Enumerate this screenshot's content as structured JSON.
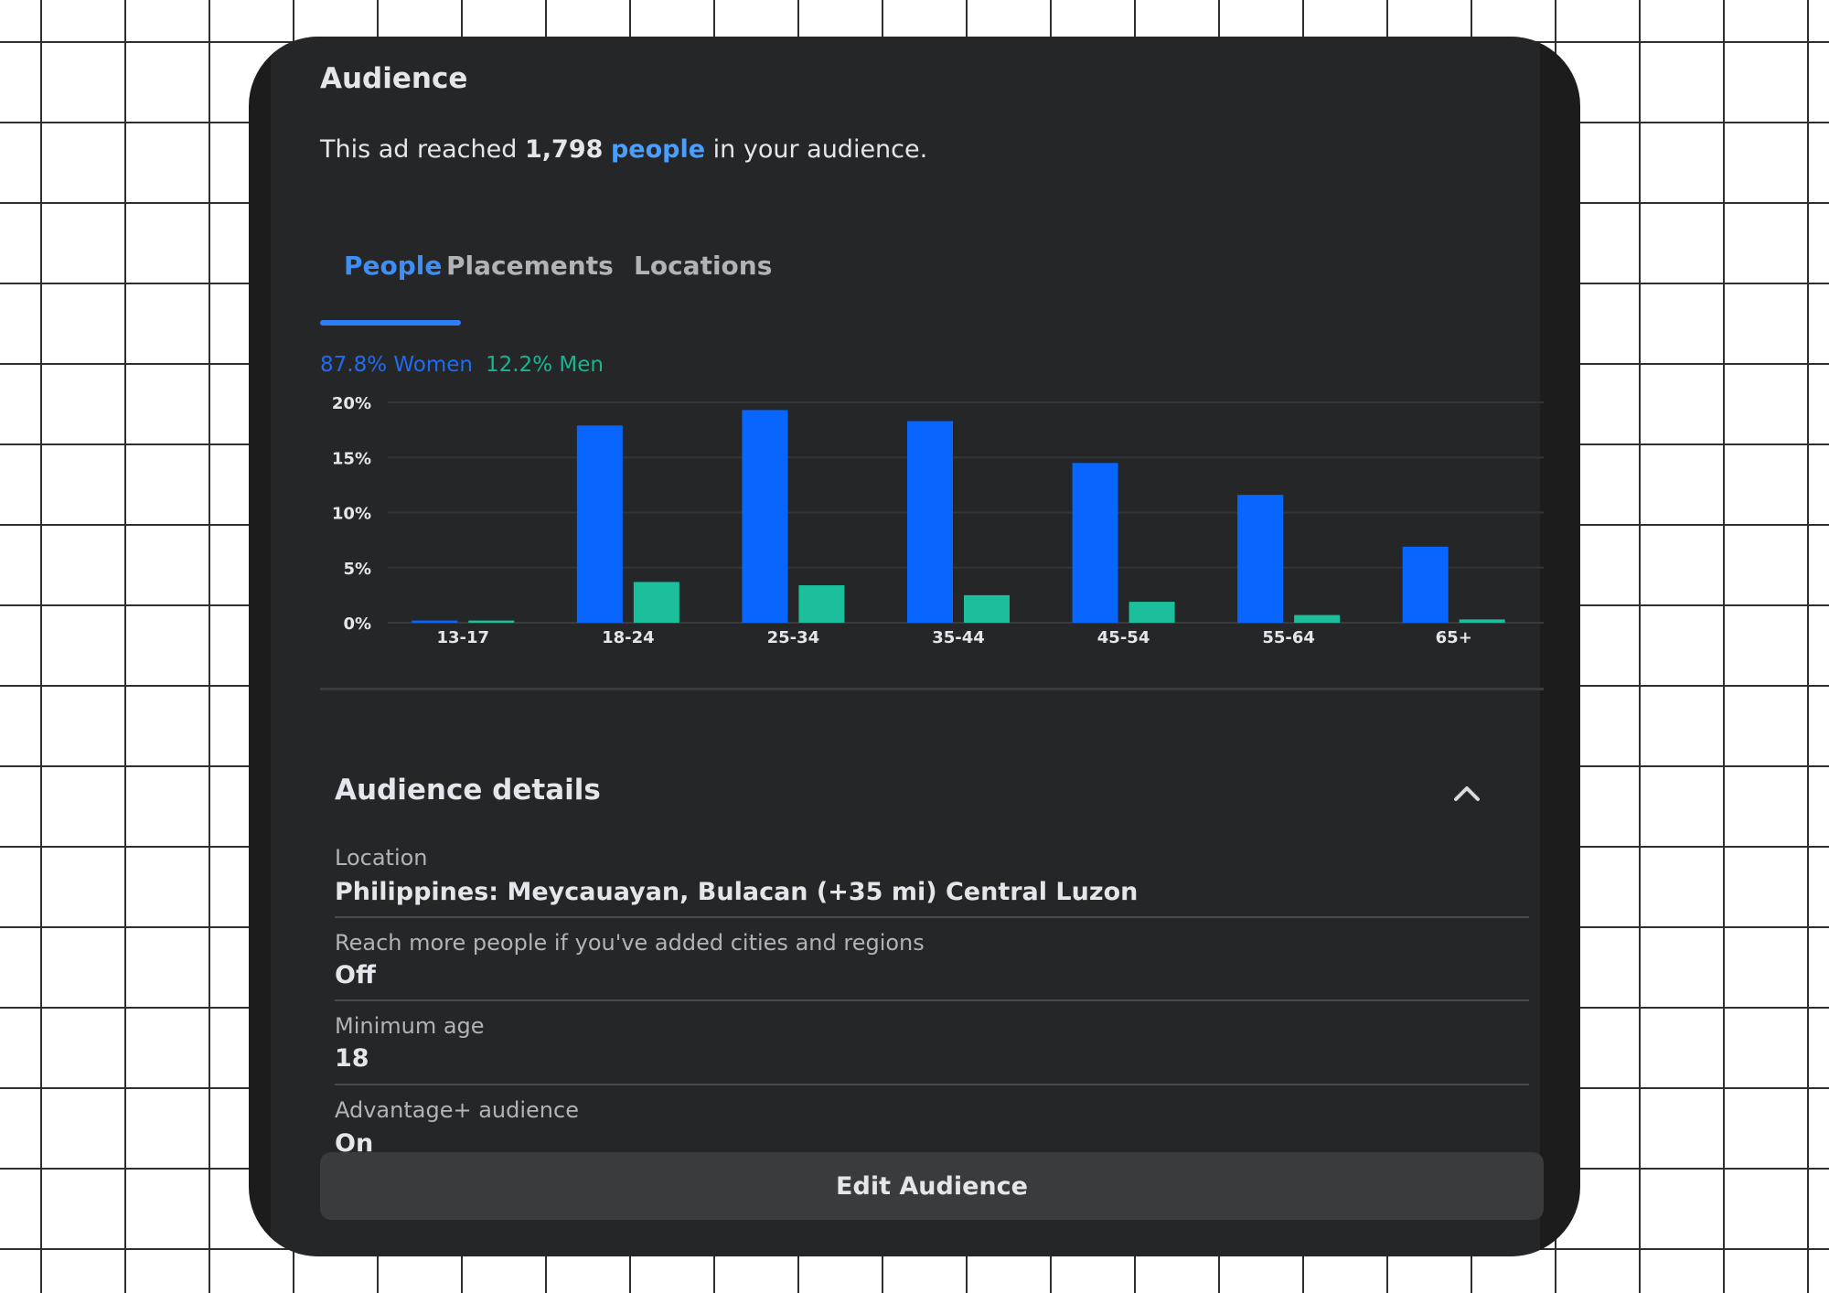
{
  "header": {
    "title": "Audience",
    "reach_prefix": "This ad reached ",
    "reach_count": "1,798",
    "reach_link": "people",
    "reach_suffix": " in your audience."
  },
  "tabs": [
    {
      "label": "People",
      "active": true
    },
    {
      "label": "Placements",
      "active": false
    },
    {
      "label": "Locations",
      "active": false
    }
  ],
  "legend": {
    "women": "87.8% Women",
    "men": "12.2% Men"
  },
  "colors": {
    "women": "#0866ff",
    "men": "#1bbf9b",
    "accent": "#2d7ff9"
  },
  "chart_data": {
    "type": "bar",
    "categories": [
      "13-17",
      "18-24",
      "25-34",
      "35-44",
      "45-54",
      "55-64",
      "65+"
    ],
    "series": [
      {
        "name": "Women",
        "values": [
          0.2,
          17.9,
          19.3,
          18.3,
          14.5,
          11.6,
          6.9
        ]
      },
      {
        "name": "Men",
        "values": [
          0.2,
          3.7,
          3.4,
          2.5,
          1.9,
          0.7,
          0.3
        ]
      }
    ],
    "y_ticks": [
      "0%",
      "5%",
      "10%",
      "15%",
      "20%"
    ],
    "ylim": [
      0,
      20
    ],
    "grid": true
  },
  "details": {
    "title": "Audience details",
    "fields": [
      {
        "label": "Location",
        "value": "Philippines: Meycauayan, Bulacan (+35 mi) Central Luzon"
      },
      {
        "label": "Reach more people if you've added cities and regions",
        "value": "Off"
      },
      {
        "label": "Minimum age",
        "value": "18"
      },
      {
        "label": "Advantage+ audience",
        "value": "On"
      }
    ]
  },
  "edit_button": "Edit Audience"
}
